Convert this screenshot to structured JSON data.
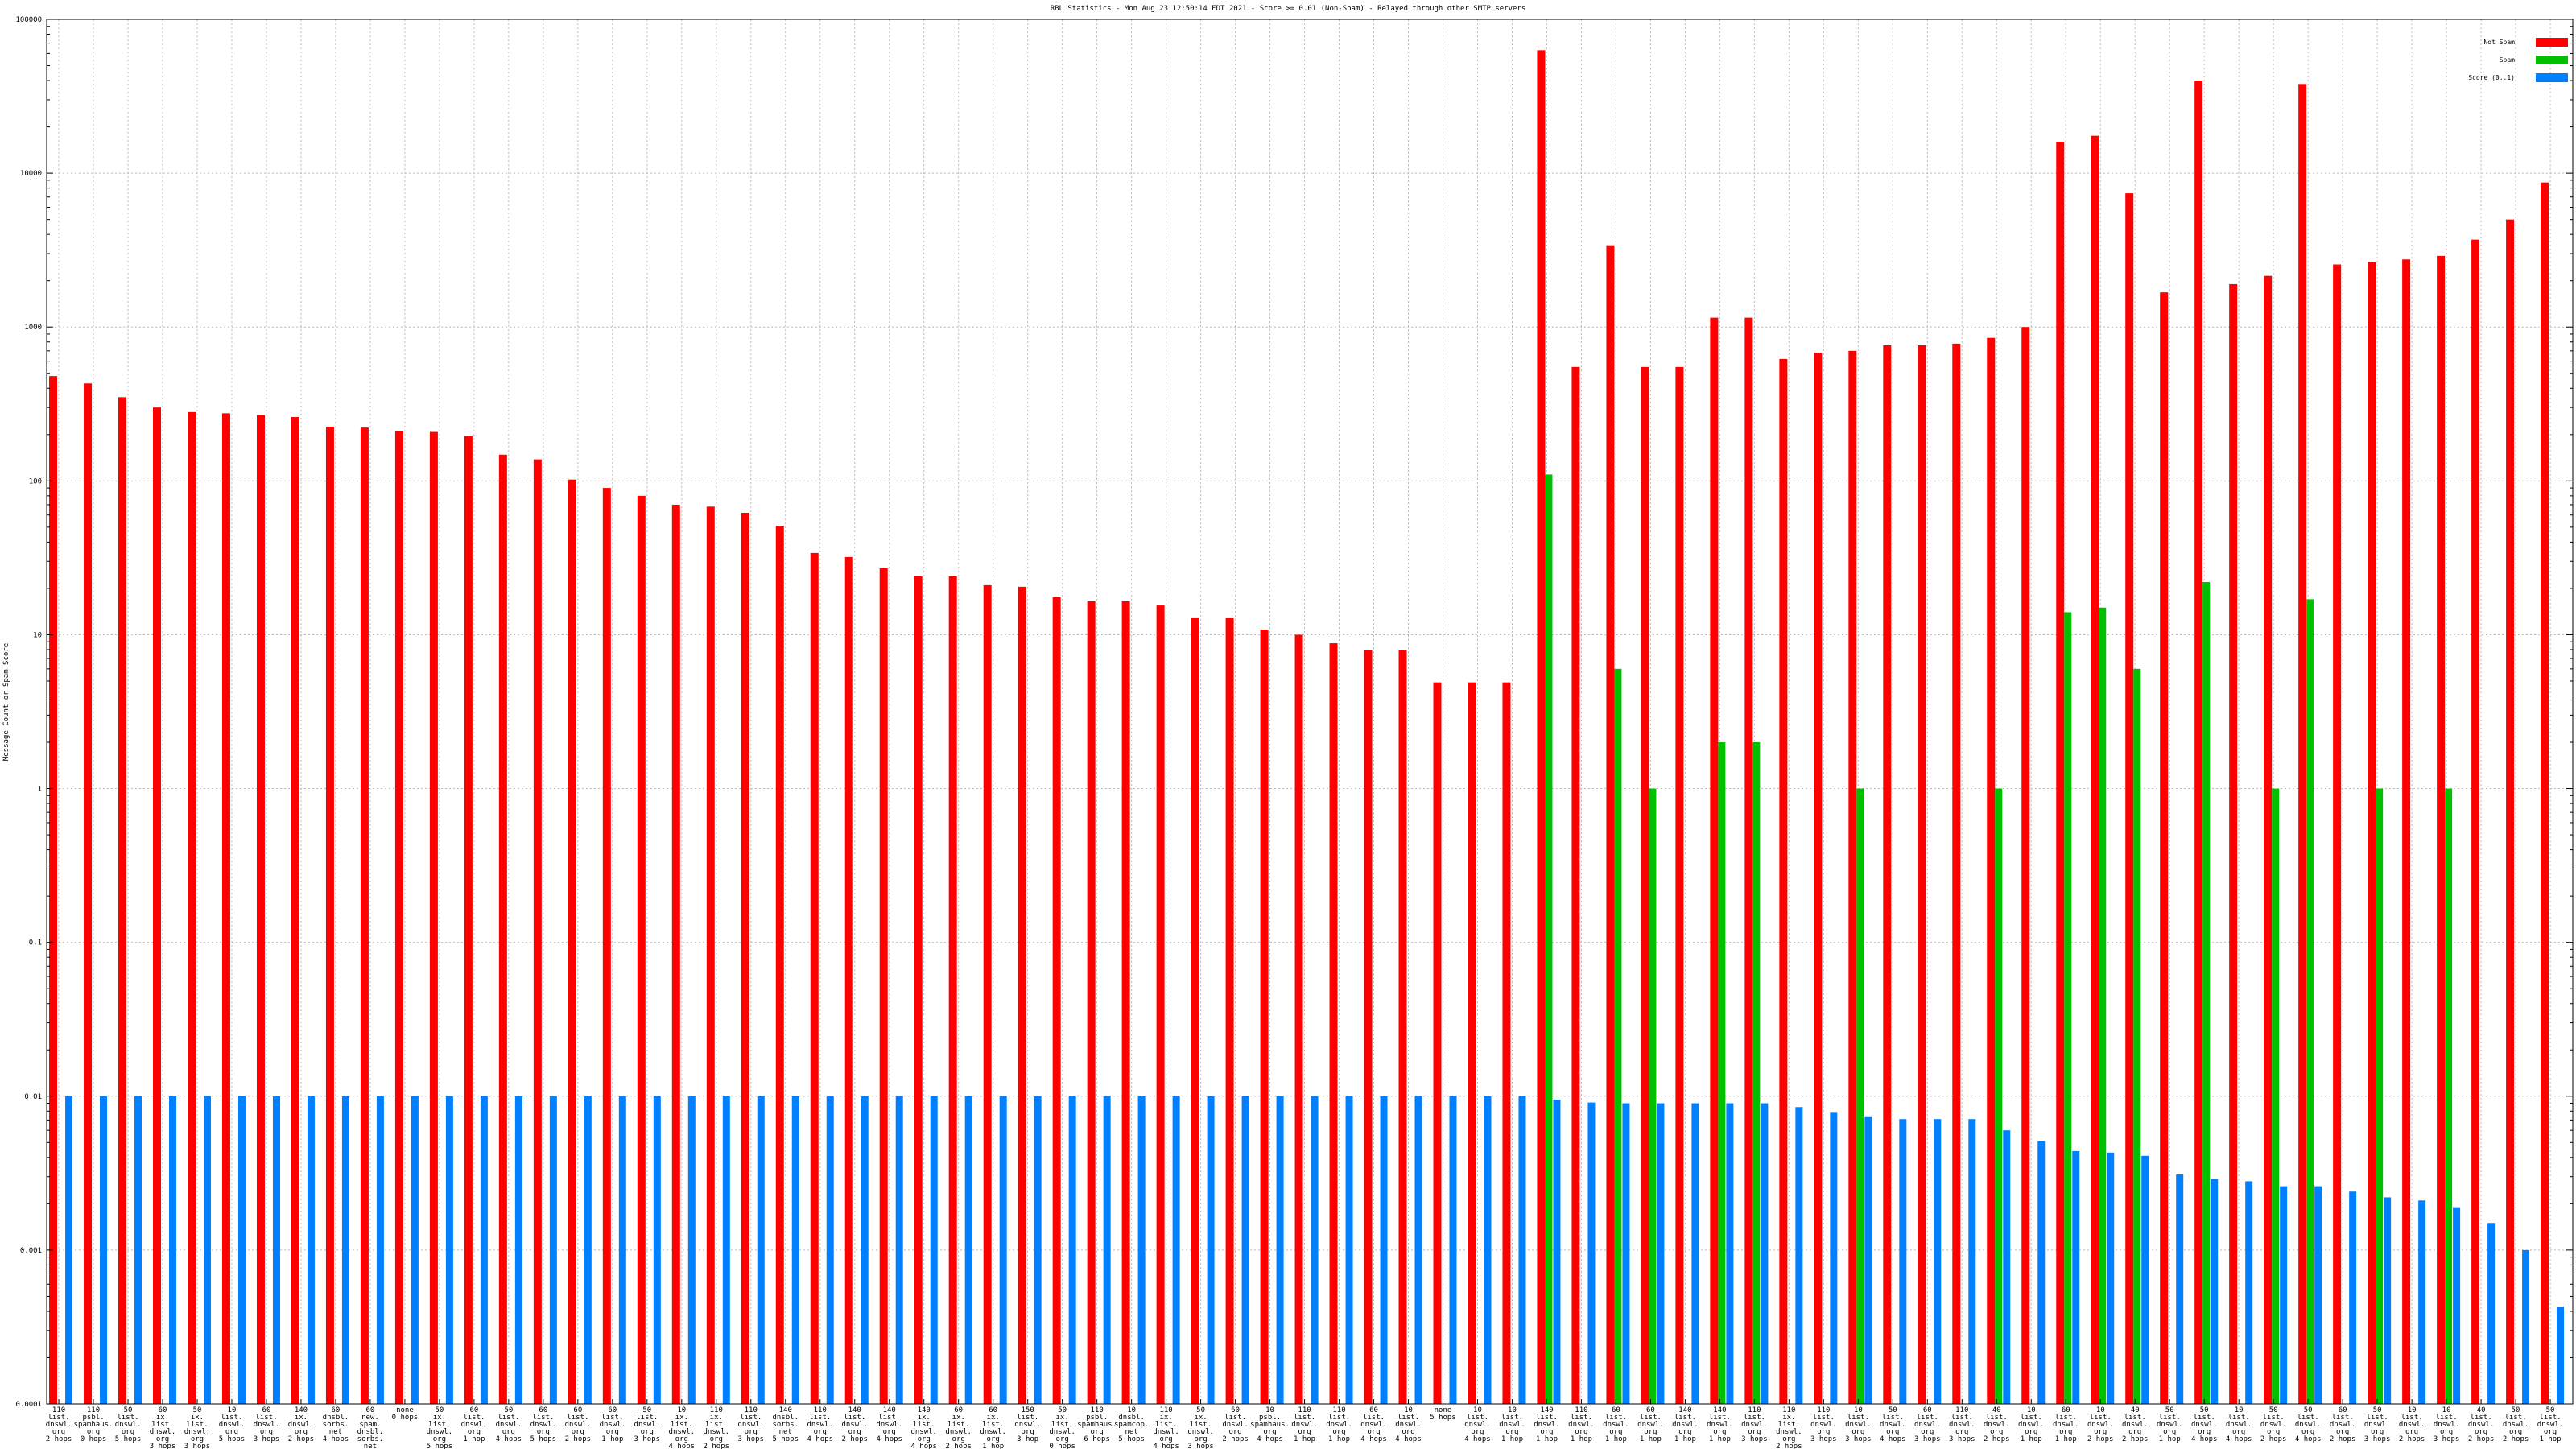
{
  "chart_data": {
    "type": "bar",
    "title": "RBL Statistics - Mon Aug 23 12:50:14 EDT 2021 - Score >= 0.01 (Non-Spam) - Relayed through other SMTP servers",
    "ylabel": "Message Count or Spam Score",
    "yscale": "log",
    "ylim": [
      0.0001,
      100000
    ],
    "yticks": [
      "0.0001",
      "0.001",
      "0.01",
      "0.1",
      "1",
      "10",
      "100",
      "1000",
      "10000",
      "100000"
    ],
    "grid": true,
    "legend_position": "top-right",
    "colors": {
      "not_spam": "#ff0000",
      "spam": "#00c000",
      "score": "#0080ff"
    },
    "categories": [
      [
        "110",
        "list.",
        "dnswl.",
        "org",
        "2 hops"
      ],
      [
        "110",
        "psbl.",
        "spamhaus.",
        "org",
        "0 hops"
      ],
      [
        "50",
        "list.",
        "dnswl.",
        "org",
        "5 hops"
      ],
      [
        "60",
        "ix.",
        "list.",
        "dnswl.",
        "org",
        "3 hops"
      ],
      [
        "50",
        "ix.",
        "list.",
        "dnswl.",
        "org",
        "3 hops"
      ],
      [
        "10",
        "list.",
        "dnswl.",
        "org",
        "5 hops"
      ],
      [
        "60",
        "list.",
        "dnswl.",
        "org",
        "3 hops"
      ],
      [
        "140",
        "ix.",
        "dnswl.",
        "org",
        "2 hops"
      ],
      [
        "60",
        "dnsbl.",
        "sorbs.",
        "net",
        "4 hops"
      ],
      [
        "60",
        "new.",
        "spam.",
        "dnsbl.",
        "sorbs.",
        "net",
        "4 hops"
      ],
      [
        "none",
        "0 hops"
      ],
      [
        "50",
        "ix.",
        "list.",
        "dnswl.",
        "org",
        "5 hops"
      ],
      [
        "60",
        "list.",
        "dnswl.",
        "org",
        "1 hop"
      ],
      [
        "50",
        "list.",
        "dnswl.",
        "org",
        "4 hops"
      ],
      [
        "60",
        "list.",
        "dnswl.",
        "org",
        "5 hops"
      ],
      [
        "60",
        "list.",
        "dnswl.",
        "org",
        "2 hops"
      ],
      [
        "60",
        "list.",
        "dnswl.",
        "org",
        "1 hop"
      ],
      [
        "50",
        "list.",
        "dnswl.",
        "org",
        "3 hops"
      ],
      [
        "10",
        "ix.",
        "list.",
        "dnswl.",
        "org",
        "4 hops"
      ],
      [
        "110",
        "ix.",
        "list.",
        "dnswl.",
        "org",
        "2 hops"
      ],
      [
        "110",
        "list.",
        "dnswl.",
        "org",
        "3 hops"
      ],
      [
        "140",
        "dnsbl.",
        "sorbs.",
        "net",
        "5 hops"
      ],
      [
        "110",
        "list.",
        "dnswl.",
        "org",
        "4 hops"
      ],
      [
        "140",
        "list.",
        "dnswl.",
        "org",
        "2 hops"
      ],
      [
        "140",
        "list.",
        "dnswl.",
        "org",
        "4 hops"
      ],
      [
        "140",
        "ix.",
        "list.",
        "dnswl.",
        "org",
        "4 hops"
      ],
      [
        "60",
        "ix.",
        "list.",
        "dnswl.",
        "org",
        "2 hops"
      ],
      [
        "60",
        "ix.",
        "list.",
        "dnswl.",
        "org",
        "1 hop"
      ],
      [
        "150",
        "list.",
        "dnswl.",
        "org",
        "3 hop"
      ],
      [
        "50",
        "ix.",
        "list.",
        "dnswl.",
        "org",
        "0 hops"
      ],
      [
        "110",
        "psbl.",
        "spamhaus.",
        "org",
        "6 hops"
      ],
      [
        "10",
        "dnsbl.",
        "spamcop.",
        "net",
        "5 hops"
      ],
      [
        "110",
        "ix.",
        "list.",
        "dnswl.",
        "org",
        "4 hops"
      ],
      [
        "50",
        "ix.",
        "list.",
        "dnswl.",
        "org",
        "3 hops"
      ],
      [
        "60",
        "list.",
        "dnswl.",
        "org",
        "2 hops"
      ],
      [
        "10",
        "psbl.",
        "spamhaus.",
        "org",
        "4 hops"
      ],
      [
        "110",
        "list.",
        "dnswl.",
        "org",
        "1 hop"
      ],
      [
        "110",
        "list.",
        "dnswl.",
        "org",
        "1 hop"
      ],
      [
        "60",
        "list.",
        "dnswl.",
        "org",
        "4 hops"
      ],
      [
        "10",
        "list.",
        "dnswl.",
        "org",
        "4 hops"
      ],
      [
        "none",
        "5 hops"
      ],
      [
        "10",
        "list.",
        "dnswl.",
        "org",
        "4 hops"
      ],
      [
        "10",
        "list.",
        "dnswl.",
        "org",
        "1 hop"
      ],
      [
        "140",
        "list.",
        "dnswl.",
        "org",
        "1 hop"
      ],
      [
        "110",
        "list.",
        "dnswl.",
        "org",
        "1 hop"
      ],
      [
        "60",
        "list.",
        "dnswl.",
        "org",
        "1 hop"
      ],
      [
        "60",
        "list.",
        "dnswl.",
        "org",
        "1 hop"
      ],
      [
        "140",
        "list.",
        "dnswl.",
        "org",
        "1 hop"
      ],
      [
        "140",
        "list.",
        "dnswl.",
        "org",
        "1 hop"
      ],
      [
        "110",
        "list.",
        "dnswl.",
        "org",
        "3 hops"
      ],
      [
        "110",
        "ix.",
        "list.",
        "dnswl.",
        "org",
        "2 hops"
      ],
      [
        "110",
        "list.",
        "dnswl.",
        "org",
        "3 hops"
      ],
      [
        "10",
        "list.",
        "dnswl.",
        "org",
        "3 hops"
      ],
      [
        "50",
        "list.",
        "dnswl.",
        "org",
        "4 hops"
      ],
      [
        "60",
        "list.",
        "dnswl.",
        "org",
        "3 hops"
      ],
      [
        "110",
        "list.",
        "dnswl.",
        "org",
        "3 hops"
      ],
      [
        "40",
        "list.",
        "dnswl.",
        "org",
        "2 hops"
      ],
      [
        "10",
        "list.",
        "dnswl.",
        "org",
        "1 hop"
      ],
      [
        "60",
        "list.",
        "dnswl.",
        "org",
        "1 hop"
      ],
      [
        "10",
        "list.",
        "dnswl.",
        "org",
        "2 hops"
      ],
      [
        "40",
        "list.",
        "dnswl.",
        "org",
        "2 hops"
      ],
      [
        "50",
        "list.",
        "dnswl.",
        "org",
        "1 hop"
      ],
      [
        "50",
        "list.",
        "dnswl.",
        "org",
        "4 hops"
      ],
      [
        "10",
        "list.",
        "dnswl.",
        "org",
        "4 hops"
      ],
      [
        "50",
        "list.",
        "dnswl.",
        "org",
        "2 hops"
      ],
      [
        "50",
        "list.",
        "dnswl.",
        "org",
        "4 hops"
      ],
      [
        "60",
        "list.",
        "dnswl.",
        "org",
        "2 hops"
      ],
      [
        "50",
        "list.",
        "dnswl.",
        "org",
        "3 hops"
      ],
      [
        "10",
        "list.",
        "dnswl.",
        "org",
        "2 hops"
      ],
      [
        "10",
        "list.",
        "dnswl.",
        "org",
        "3 hops"
      ],
      [
        "40",
        "list.",
        "dnswl.",
        "org",
        "2 hops"
      ],
      [
        "50",
        "list.",
        "dnswl.",
        "org",
        "2 hops"
      ],
      [
        "50",
        "list.",
        "dnswl.",
        "org",
        "1 hop"
      ]
    ],
    "series": [
      {
        "name": "Not Spam",
        "values": [
          480,
          430,
          350,
          300,
          280,
          275,
          268,
          260,
          225,
          222,
          210,
          208,
          195,
          148,
          138,
          102,
          90,
          80,
          70,
          68,
          62,
          51,
          34,
          32,
          27,
          24,
          24,
          21,
          20.5,
          17.5,
          16.5,
          16.5,
          15.5,
          12.8,
          12.8,
          10.8,
          10,
          8.8,
          7.9,
          7.9,
          4.9,
          4.9,
          4.9,
          63000,
          550,
          3400,
          550,
          550,
          1150,
          1150,
          620,
          680,
          700,
          760,
          760,
          780,
          850,
          1000,
          16000,
          17500,
          7400,
          1680,
          40000,
          1900,
          2150,
          38000,
          2550,
          2650,
          2750,
          2900,
          3700,
          5000,
          8700
        ]
      },
      {
        "name": "Spam",
        "values": [
          null,
          null,
          null,
          null,
          null,
          null,
          null,
          null,
          null,
          null,
          null,
          null,
          null,
          null,
          null,
          null,
          null,
          null,
          null,
          null,
          null,
          null,
          null,
          null,
          null,
          null,
          null,
          null,
          null,
          null,
          null,
          null,
          null,
          null,
          null,
          null,
          null,
          null,
          null,
          null,
          null,
          null,
          null,
          110,
          null,
          6,
          1,
          null,
          2,
          2,
          null,
          null,
          1,
          null,
          null,
          null,
          1,
          null,
          14,
          15,
          6,
          null,
          22,
          null,
          1,
          17,
          null,
          1,
          null,
          1,
          null,
          null,
          null
        ]
      },
      {
        "name": "Score (0..1)",
        "values": [
          0.01,
          0.01,
          0.01,
          0.01,
          0.01,
          0.01,
          0.01,
          0.01,
          0.01,
          0.01,
          0.01,
          0.01,
          0.01,
          0.01,
          0.01,
          0.01,
          0.01,
          0.01,
          0.01,
          0.01,
          0.01,
          0.01,
          0.01,
          0.01,
          0.01,
          0.01,
          0.01,
          0.01,
          0.01,
          0.01,
          0.01,
          0.01,
          0.01,
          0.01,
          0.01,
          0.01,
          0.01,
          0.01,
          0.01,
          0.01,
          0.01,
          0.01,
          0.01,
          0.0095,
          0.0091,
          0.009,
          0.009,
          0.009,
          0.009,
          0.009,
          0.0085,
          0.0079,
          0.0074,
          0.0071,
          0.0071,
          0.0071,
          0.006,
          0.0051,
          0.0044,
          0.0043,
          0.0041,
          0.0031,
          0.0029,
          0.0028,
          0.0026,
          0.0026,
          0.0024,
          0.0022,
          0.0021,
          0.0019,
          0.0015,
          0.001,
          0.00043
        ]
      }
    ]
  }
}
